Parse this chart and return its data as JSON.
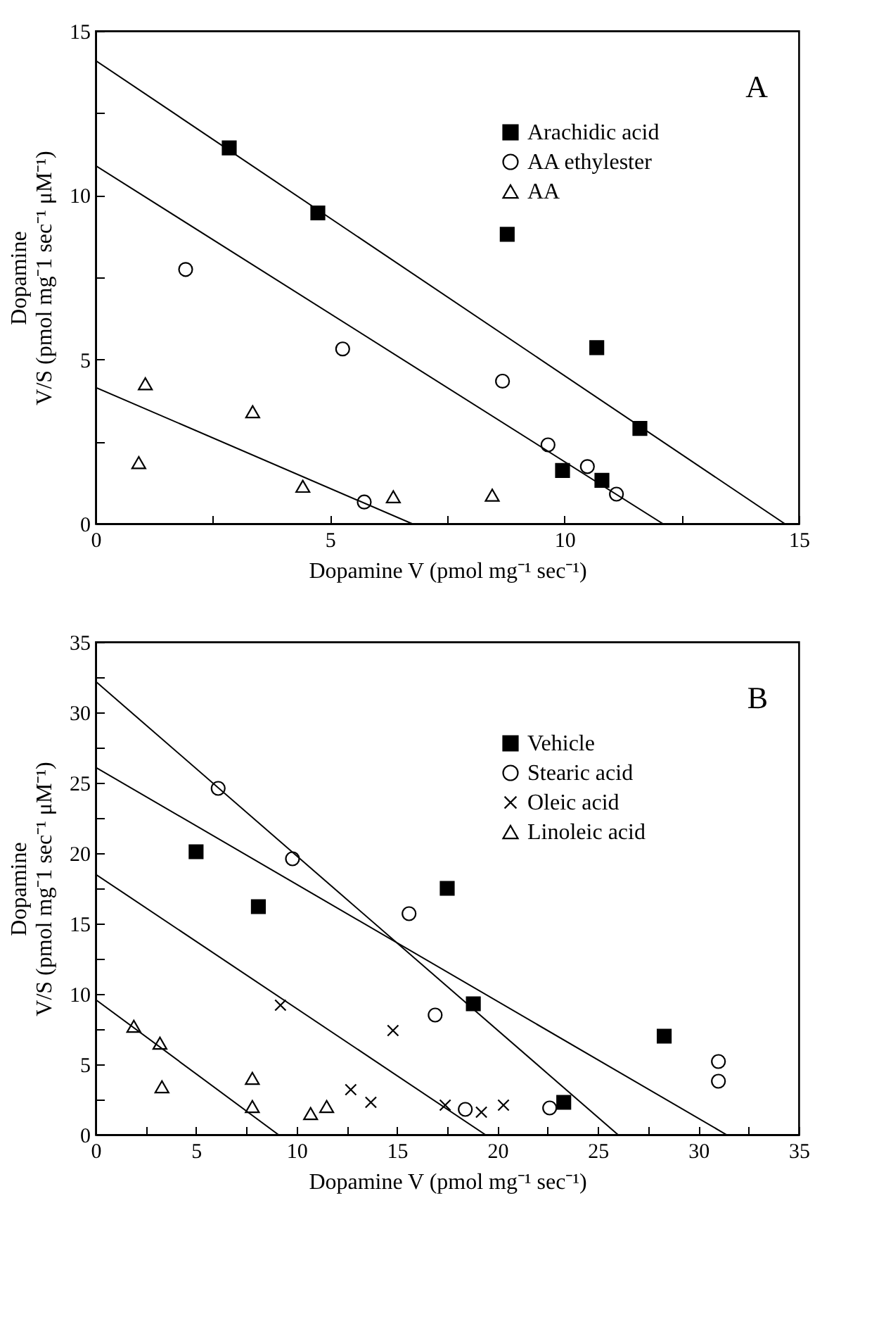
{
  "chart_data": [
    {
      "type": "scatter",
      "annotations": [
        "A"
      ],
      "xlabel": "Dopamine V (pmol mg⁻¹ sec⁻¹)",
      "ylabel": "Dopamine\nV/S (pmol mg⁻1 sec⁻¹ μM⁻¹)",
      "xlim": [
        0,
        15
      ],
      "ylim": [
        0,
        15
      ],
      "xticks": [
        0,
        {
          "value": 2.5,
          "label": null
        },
        5,
        {
          "value": 7.5,
          "label": null
        },
        10,
        {
          "value": 12.5,
          "label": null
        },
        15
      ],
      "yticks": [
        0,
        {
          "value": 2.5,
          "label": null
        },
        5,
        {
          "value": 7.5,
          "label": null
        },
        10,
        {
          "value": 12.5,
          "label": null
        },
        15
      ],
      "grid": false,
      "legend": "top right",
      "series": [
        {
          "name": "Arachidic acid",
          "color": "#000000",
          "marker": "square",
          "x": [
            2.85,
            4.74,
            8.78,
            10.69,
            11.61,
            9.96,
            10.8
          ],
          "values": [
            11.44,
            9.46,
            8.81,
            5.36,
            2.9,
            1.62,
            1.32
          ]
        },
        {
          "name": "AA ethylester",
          "color": "#000000",
          "marker": "circle",
          "x": [
            1.92,
            5.27,
            8.68,
            9.65,
            10.49,
            11.11,
            5.73
          ],
          "values": [
            7.74,
            5.32,
            4.34,
            2.4,
            1.74,
            0.9,
            0.66
          ]
        },
        {
          "name": "AA",
          "color": "#000000",
          "marker": "triangle",
          "x": [
            1.06,
            3.35,
            0.92,
            4.42,
            6.35,
            8.46
          ],
          "values": [
            4.26,
            3.41,
            1.86,
            1.14,
            0.82,
            0.87
          ]
        },
        {
          "type": "line",
          "color": "#000000",
          "x": [
            0,
            14.7
          ],
          "values": [
            14.1,
            0
          ]
        },
        {
          "type": "line",
          "color": "#000000",
          "x": [
            0,
            12.1
          ],
          "values": [
            10.9,
            0
          ]
        },
        {
          "type": "line",
          "color": "#000000",
          "x": [
            0,
            6.75
          ],
          "values": [
            4.15,
            0
          ]
        }
      ]
    },
    {
      "type": "scatter",
      "annotations": [
        "B"
      ],
      "xlabel": "Dopamine V (pmol mg⁻¹ sec⁻¹)",
      "ylabel": "Dopamine\nV/S (pmol mg⁻1 sec⁻¹ μM⁻¹)",
      "xlim": [
        0,
        35
      ],
      "ylim": [
        0,
        35
      ],
      "xticks": [
        0,
        {
          "value": 2.5,
          "label": null
        },
        5,
        {
          "value": 7.5,
          "label": null
        },
        10,
        {
          "value": 12.5,
          "label": null
        },
        15,
        {
          "value": 17.5,
          "label": null
        },
        20,
        {
          "value": 22.5,
          "label": null
        },
        25,
        {
          "value": 27.5,
          "label": null
        },
        30,
        {
          "value": 32.5,
          "label": null
        },
        35
      ],
      "yticks": [
        0,
        {
          "value": 2.5,
          "label": null
        },
        5,
        {
          "value": 7.5,
          "label": null
        },
        10,
        {
          "value": 12.5,
          "label": null
        },
        15,
        {
          "value": 17.5,
          "label": null
        },
        20,
        {
          "value": 22.5,
          "label": null
        },
        25,
        {
          "value": 27.5,
          "label": null
        },
        30,
        {
          "value": 32.5,
          "label": null
        },
        35
      ],
      "grid": false,
      "legend": "top right",
      "series": [
        {
          "name": "Vehicle",
          "color": "#000000",
          "marker": "square",
          "x": [
            5.0,
            8.1,
            17.5,
            18.8,
            23.3,
            28.3
          ],
          "values": [
            20.1,
            16.2,
            17.5,
            9.3,
            2.3,
            7.0
          ]
        },
        {
          "name": "Stearic acid",
          "color": "#000000",
          "marker": "circle",
          "x": [
            6.1,
            9.8,
            15.6,
            16.9,
            18.4,
            22.6,
            31.0,
            31.0
          ],
          "values": [
            24.6,
            19.6,
            15.7,
            8.5,
            1.8,
            1.9,
            5.2,
            3.8
          ]
        },
        {
          "name": "Oleic acid",
          "color": "#000000",
          "marker": "cross",
          "x": [
            9.2,
            14.8,
            12.7,
            13.7,
            17.4,
            19.2,
            20.3
          ],
          "values": [
            9.2,
            7.4,
            3.2,
            2.3,
            2.1,
            1.6,
            2.1
          ]
        },
        {
          "name": "Linoleic acid",
          "color": "#000000",
          "marker": "triangle",
          "x": [
            1.9,
            3.2,
            3.3,
            7.8,
            7.8,
            10.7,
            11.5
          ],
          "values": [
            7.7,
            6.5,
            3.4,
            4.0,
            2.0,
            1.5,
            2.0
          ]
        },
        {
          "type": "line",
          "color": "#000000",
          "x": [
            0,
            26.0
          ],
          "values": [
            32.2,
            0
          ]
        },
        {
          "type": "line",
          "color": "#000000",
          "x": [
            0,
            31.4
          ],
          "values": [
            26.1,
            0
          ]
        },
        {
          "type": "line",
          "color": "#000000",
          "x": [
            0,
            19.4
          ],
          "values": [
            18.5,
            0
          ]
        },
        {
          "type": "line",
          "color": "#000000",
          "x": [
            0,
            9.1
          ],
          "values": [
            9.6,
            0
          ]
        }
      ]
    }
  ]
}
